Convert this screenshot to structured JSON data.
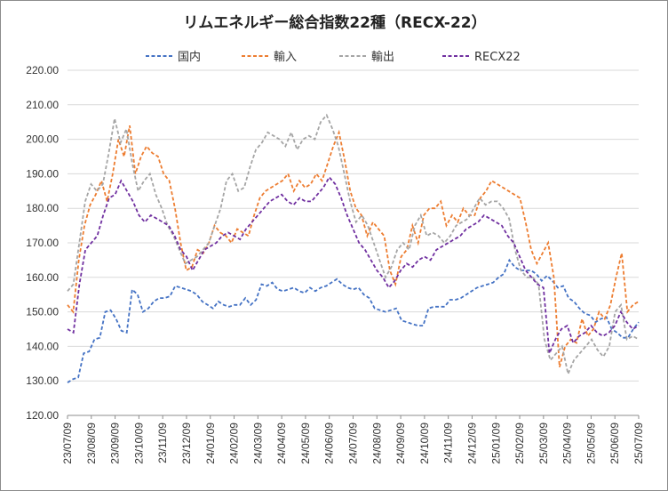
{
  "chart_data": {
    "type": "line",
    "title": "リムエネルギー総合指数22種（RECX-22）",
    "xlabel": "",
    "ylabel": "",
    "ylim": [
      120,
      220
    ],
    "y_ticks": [
      "120.00",
      "130.00",
      "140.00",
      "150.00",
      "160.00",
      "170.00",
      "180.00",
      "190.00",
      "200.00",
      "210.00",
      "220.00"
    ],
    "x_ticks": [
      "23/07/09",
      "23/08/09",
      "23/09/09",
      "23/10/09",
      "23/11/09",
      "23/12/09",
      "24/01/09",
      "24/02/09",
      "24/03/09",
      "24/04/09",
      "24/05/09",
      "24/06/09",
      "24/07/09",
      "24/08/09",
      "24/09/09",
      "24/10/09",
      "24/11/09",
      "24/12/09",
      "25/01/09",
      "25/02/09",
      "25/03/09",
      "25/04/09",
      "25/05/09",
      "25/06/09",
      "25/07/09"
    ],
    "grid": true,
    "legend_position": "top",
    "series": [
      {
        "name": "国内",
        "color": "#4472c4",
        "values": [
          129.5,
          130.5,
          131,
          138,
          138.5,
          142,
          142.5,
          150,
          150.5,
          148,
          144.5,
          144,
          156.5,
          155,
          150,
          151,
          153,
          154,
          154,
          154.5,
          157.5,
          157,
          156.5,
          156,
          155,
          153,
          152,
          151,
          153,
          152,
          151.5,
          152,
          152,
          154,
          152,
          153.5,
          158,
          157.5,
          158.5,
          156.5,
          156,
          156.5,
          157,
          156,
          155.5,
          157,
          156,
          157,
          157.5,
          158.5,
          159.5,
          158,
          157,
          156.5,
          157,
          155,
          154,
          151,
          150.5,
          150,
          150.5,
          151,
          147.5,
          147,
          146.5,
          146,
          146,
          151,
          151.5,
          151.5,
          151.5,
          153.5,
          153.5,
          154,
          155,
          156,
          157,
          157.5,
          158,
          158.5,
          160,
          161,
          165,
          163,
          162,
          162,
          162,
          161,
          159,
          160.5,
          159,
          157,
          157.5,
          154,
          153,
          151,
          149.5,
          149,
          147,
          148,
          148.5,
          145,
          144,
          142.5,
          142.5,
          145,
          147
        ]
      },
      {
        "name": "輸入",
        "color": "#ed7d31",
        "values": [
          152,
          150,
          165,
          175,
          181,
          184,
          188,
          182,
          190,
          200,
          195,
          204,
          190,
          195,
          198,
          196,
          195,
          190,
          188,
          180,
          170,
          162,
          163,
          168,
          167,
          170,
          175,
          173,
          172,
          170,
          174,
          173,
          172,
          178,
          183,
          185,
          186,
          187,
          188,
          190,
          185,
          188,
          186,
          187,
          190,
          188,
          193,
          198,
          202,
          194,
          185,
          180,
          178,
          172,
          176,
          174,
          172,
          162,
          158,
          166,
          168,
          175,
          170,
          178,
          180,
          180,
          182,
          175,
          178,
          176,
          180,
          178,
          178,
          183,
          185,
          188,
          187,
          186,
          185,
          184,
          183,
          176,
          168,
          164,
          167,
          170,
          160,
          134,
          140,
          142,
          141,
          148,
          143,
          145,
          150,
          148,
          152,
          160,
          167,
          150,
          152,
          153
        ]
      },
      {
        "name": "輸出",
        "color": "#a5a5a5",
        "values": [
          156,
          158,
          170,
          182,
          187,
          185,
          187,
          196,
          206,
          199,
          203,
          193,
          185,
          188,
          190,
          184,
          180,
          175,
          172,
          168,
          164,
          165,
          166,
          168,
          170,
          175,
          180,
          188,
          190,
          185,
          186,
          192,
          197,
          199,
          202,
          201,
          200,
          198,
          202,
          197,
          200,
          201,
          200,
          205,
          207,
          203,
          198,
          190,
          182,
          176,
          178,
          175,
          170,
          165,
          160,
          163,
          168,
          170,
          168,
          175,
          178,
          172,
          173,
          172,
          170,
          172,
          175,
          176,
          177,
          180,
          183,
          181,
          182,
          182,
          180,
          177,
          168,
          162,
          160,
          160,
          158,
          142,
          136,
          138,
          140,
          132,
          136,
          138,
          140,
          142,
          139,
          137,
          140,
          150,
          152,
          142,
          143,
          142
        ]
      },
      {
        "name": "RECX22",
        "color": "#7030a0",
        "values": [
          145,
          144,
          158,
          168,
          170,
          172,
          178,
          183,
          184,
          188,
          185,
          182,
          178,
          176,
          178,
          177,
          176,
          175,
          172,
          168,
          166,
          162,
          165,
          168,
          169,
          170,
          172,
          173,
          172,
          171,
          174,
          176,
          178,
          180,
          182,
          183,
          184,
          182,
          181,
          183,
          182,
          182,
          184,
          186,
          189,
          187,
          183,
          178,
          174,
          170,
          168,
          165,
          162,
          160,
          157,
          159,
          162,
          164,
          163,
          165,
          166,
          165,
          168,
          169,
          170,
          171,
          172,
          174,
          175,
          176,
          178,
          177,
          176,
          175,
          172,
          170,
          166,
          162,
          160,
          158,
          157,
          138,
          142,
          145,
          146,
          141,
          143,
          144,
          146,
          144,
          143,
          144,
          146,
          150,
          147,
          145,
          146
        ]
      }
    ]
  }
}
